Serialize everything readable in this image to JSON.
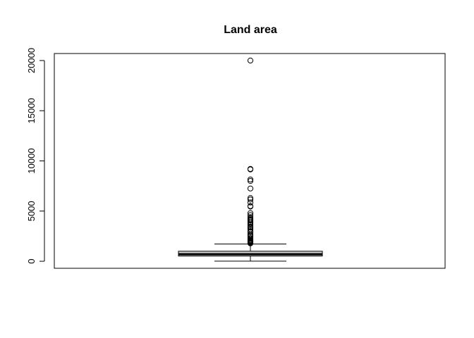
{
  "chart_data": {
    "type": "boxplot",
    "title": "Land area",
    "xlabel": "",
    "ylabel": "",
    "ylim": [
      -700,
      20700
    ],
    "yticks": [
      0,
      5000,
      10000,
      15000,
      20000
    ],
    "ytick_labels": [
      "0",
      "5000",
      "10000",
      "15000",
      "20000"
    ],
    "box": {
      "whisker_low": 10,
      "q1": 520,
      "median": 700,
      "q3": 1000,
      "whisker_high": 1720
    },
    "outliers": [
      20000,
      9200,
      9150,
      8150,
      8000,
      7250,
      6300,
      6150,
      5850,
      5500,
      5450,
      4800,
      4600,
      4400,
      4250,
      4150,
      4050,
      3900,
      3750,
      3600,
      3450,
      3350,
      3200,
      3000,
      2900,
      2700,
      2600,
      2450,
      2300,
      2200,
      2100,
      2050,
      2000,
      1950,
      1900,
      1850,
      1800,
      1780
    ],
    "grid": false,
    "legend": "none"
  }
}
